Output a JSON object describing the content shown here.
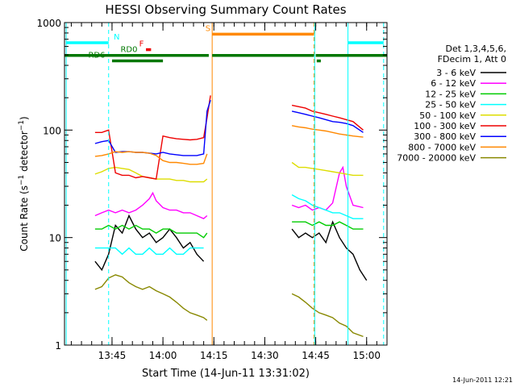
{
  "chart_data": {
    "type": "line",
    "title": "HESSI Observing Summary Count Rates",
    "xlabel": "Start Time (14-Jun-11 13:31:02)",
    "ylabel": "Count Rate (s⁻¹ detector⁻¹)",
    "y_scale": "log",
    "ylim": [
      1,
      1000
    ],
    "xlim_minutes_after_13:31:02": [
      0,
      95
    ],
    "yticks": [
      "1",
      "10",
      "100",
      "1000"
    ],
    "xticks": [
      {
        "label": "13:45",
        "t": 14
      },
      {
        "label": "14:00",
        "t": 29
      },
      {
        "label": "14:15",
        "t": 44
      },
      {
        "label": "14:30",
        "t": 59
      },
      {
        "label": "14:45",
        "t": 74
      },
      {
        "label": "15:00",
        "t": 89
      }
    ],
    "date_stamp": "14-Jun-2011 12:21",
    "legend_header": [
      "Det 1,3,4,5,6,",
      "FDecim 1, Att 0"
    ],
    "series": [
      {
        "name": "3 - 6 keV",
        "color": "#000000",
        "seg1": [
          [
            9,
            6
          ],
          [
            11,
            5
          ],
          [
            13,
            7
          ],
          [
            15,
            13
          ],
          [
            17,
            11
          ],
          [
            19,
            16
          ],
          [
            21,
            12
          ],
          [
            23,
            10
          ],
          [
            25,
            11
          ],
          [
            27,
            9
          ],
          [
            29,
            10
          ],
          [
            31,
            12
          ],
          [
            33,
            10
          ],
          [
            35,
            8
          ],
          [
            37,
            9
          ],
          [
            39,
            7
          ],
          [
            41,
            6
          ]
        ],
        "seg2": [
          [
            67,
            12
          ],
          [
            69,
            10
          ],
          [
            71,
            11
          ],
          [
            73,
            10
          ],
          [
            75,
            11
          ],
          [
            77,
            9
          ],
          [
            79,
            14
          ],
          [
            81,
            10
          ],
          [
            83,
            8
          ],
          [
            85,
            7
          ],
          [
            87,
            5
          ],
          [
            89,
            4
          ]
        ]
      },
      {
        "name": "6 - 12 keV",
        "color": "#ff00ff",
        "seg1": [
          [
            9,
            16
          ],
          [
            11,
            17
          ],
          [
            13,
            18
          ],
          [
            15,
            17
          ],
          [
            17,
            18
          ],
          [
            19,
            17
          ],
          [
            21,
            18
          ],
          [
            23,
            20
          ],
          [
            25,
            23
          ],
          [
            26,
            26
          ],
          [
            27,
            22
          ],
          [
            29,
            19
          ],
          [
            31,
            18
          ],
          [
            33,
            18
          ],
          [
            35,
            17
          ],
          [
            37,
            17
          ],
          [
            39,
            16
          ],
          [
            41,
            15
          ],
          [
            42,
            16
          ]
        ],
        "seg2": [
          [
            67,
            20
          ],
          [
            69,
            19
          ],
          [
            71,
            20
          ],
          [
            73,
            18
          ],
          [
            75,
            19
          ],
          [
            77,
            18
          ],
          [
            79,
            21
          ],
          [
            81,
            40
          ],
          [
            82,
            45
          ],
          [
            83,
            30
          ],
          [
            85,
            20
          ],
          [
            88,
            19
          ]
        ]
      },
      {
        "name": "12 - 25 keV",
        "color": "#00cc00",
        "seg1": [
          [
            9,
            12
          ],
          [
            11,
            12
          ],
          [
            13,
            13
          ],
          [
            15,
            12
          ],
          [
            17,
            13
          ],
          [
            19,
            12
          ],
          [
            21,
            13
          ],
          [
            23,
            12
          ],
          [
            25,
            12
          ],
          [
            27,
            11
          ],
          [
            29,
            12
          ],
          [
            31,
            12
          ],
          [
            33,
            11
          ],
          [
            35,
            11
          ],
          [
            37,
            11
          ],
          [
            39,
            11
          ],
          [
            41,
            10
          ],
          [
            42,
            11
          ]
        ],
        "seg2": [
          [
            67,
            14
          ],
          [
            69,
            14
          ],
          [
            71,
            14
          ],
          [
            73,
            13
          ],
          [
            75,
            14
          ],
          [
            77,
            13
          ],
          [
            79,
            13
          ],
          [
            81,
            14
          ],
          [
            83,
            13
          ],
          [
            85,
            12
          ],
          [
            88,
            12
          ]
        ]
      },
      {
        "name": "25 - 50 keV",
        "color": "#00ffff",
        "seg1": [
          [
            9,
            8
          ],
          [
            11,
            8
          ],
          [
            13,
            8
          ],
          [
            15,
            8
          ],
          [
            17,
            7
          ],
          [
            19,
            8
          ],
          [
            21,
            7
          ],
          [
            23,
            7
          ],
          [
            25,
            8
          ],
          [
            27,
            7
          ],
          [
            29,
            7
          ],
          [
            31,
            8
          ],
          [
            33,
            7
          ],
          [
            35,
            7
          ],
          [
            37,
            8
          ],
          [
            39,
            8
          ],
          [
            41,
            8
          ]
        ],
        "seg2": [
          [
            67,
            25
          ],
          [
            69,
            23
          ],
          [
            71,
            22
          ],
          [
            73,
            20
          ],
          [
            75,
            19
          ],
          [
            77,
            18
          ],
          [
            79,
            17
          ],
          [
            81,
            17
          ],
          [
            83,
            16
          ],
          [
            85,
            15
          ],
          [
            88,
            15
          ]
        ]
      },
      {
        "name": "50 - 100 keV",
        "color": "#dddd00",
        "seg1": [
          [
            9,
            39
          ],
          [
            11,
            41
          ],
          [
            13,
            44
          ],
          [
            15,
            45
          ],
          [
            17,
            44
          ],
          [
            19,
            43
          ],
          [
            21,
            40
          ],
          [
            23,
            37
          ],
          [
            25,
            36
          ],
          [
            27,
            35
          ],
          [
            29,
            35
          ],
          [
            31,
            35
          ],
          [
            33,
            34
          ],
          [
            35,
            34
          ],
          [
            37,
            33
          ],
          [
            39,
            33
          ],
          [
            41,
            33
          ],
          [
            42,
            35
          ]
        ],
        "seg2": [
          [
            67,
            50
          ],
          [
            69,
            45
          ],
          [
            71,
            45
          ],
          [
            73,
            44
          ],
          [
            75,
            43
          ],
          [
            77,
            42
          ],
          [
            79,
            41
          ],
          [
            81,
            40
          ],
          [
            83,
            39
          ],
          [
            85,
            38
          ],
          [
            88,
            38
          ]
        ]
      },
      {
        "name": "100 - 300 keV",
        "color": "#ee0000",
        "seg1": [
          [
            9,
            95
          ],
          [
            11,
            95
          ],
          [
            13,
            100
          ],
          [
            15,
            40
          ],
          [
            17,
            38
          ],
          [
            19,
            38
          ],
          [
            21,
            36
          ],
          [
            23,
            37
          ],
          [
            25,
            36
          ],
          [
            27,
            35
          ],
          [
            29,
            88
          ],
          [
            31,
            85
          ],
          [
            33,
            83
          ],
          [
            35,
            82
          ],
          [
            37,
            81
          ],
          [
            39,
            82
          ],
          [
            41,
            85
          ],
          [
            42,
            130
          ],
          [
            43,
            210
          ]
        ],
        "seg2": [
          [
            67,
            170
          ],
          [
            69,
            165
          ],
          [
            71,
            160
          ],
          [
            73,
            150
          ],
          [
            75,
            145
          ],
          [
            77,
            140
          ],
          [
            79,
            135
          ],
          [
            81,
            130
          ],
          [
            83,
            125
          ],
          [
            85,
            120
          ],
          [
            88,
            100
          ]
        ]
      },
      {
        "name": "300 - 800 keV",
        "color": "#0000ff",
        "seg1": [
          [
            9,
            75
          ],
          [
            11,
            78
          ],
          [
            13,
            80
          ],
          [
            15,
            62
          ],
          [
            17,
            63
          ],
          [
            19,
            63
          ],
          [
            21,
            62
          ],
          [
            23,
            62
          ],
          [
            25,
            61
          ],
          [
            27,
            60
          ],
          [
            29,
            62
          ],
          [
            31,
            60
          ],
          [
            33,
            59
          ],
          [
            35,
            58
          ],
          [
            37,
            58
          ],
          [
            39,
            58
          ],
          [
            41,
            60
          ],
          [
            42,
            150
          ],
          [
            43,
            190
          ]
        ],
        "seg2": [
          [
            67,
            150
          ],
          [
            69,
            145
          ],
          [
            71,
            140
          ],
          [
            73,
            135
          ],
          [
            75,
            130
          ],
          [
            77,
            125
          ],
          [
            79,
            120
          ],
          [
            81,
            118
          ],
          [
            83,
            115
          ],
          [
            85,
            110
          ],
          [
            88,
            95
          ]
        ]
      },
      {
        "name": "800 - 7000 keV",
        "color": "#ff8800",
        "seg1": [
          [
            9,
            57
          ],
          [
            11,
            58
          ],
          [
            13,
            60
          ],
          [
            15,
            63
          ],
          [
            17,
            62
          ],
          [
            19,
            63
          ],
          [
            21,
            62
          ],
          [
            23,
            62
          ],
          [
            25,
            61
          ],
          [
            27,
            58
          ],
          [
            29,
            52
          ],
          [
            31,
            50
          ],
          [
            33,
            50
          ],
          [
            35,
            49
          ],
          [
            37,
            48
          ],
          [
            39,
            48
          ],
          [
            41,
            49
          ],
          [
            42,
            60
          ]
        ],
        "seg2": [
          [
            67,
            110
          ],
          [
            69,
            107
          ],
          [
            71,
            105
          ],
          [
            73,
            102
          ],
          [
            75,
            100
          ],
          [
            77,
            98
          ],
          [
            79,
            95
          ],
          [
            81,
            92
          ],
          [
            83,
            90
          ],
          [
            85,
            88
          ],
          [
            88,
            86
          ]
        ]
      },
      {
        "name": "7000 - 20000 keV",
        "color": "#888800",
        "seg1": [
          [
            9,
            3.3
          ],
          [
            11,
            3.5
          ],
          [
            13,
            4.2
          ],
          [
            15,
            4.5
          ],
          [
            17,
            4.3
          ],
          [
            19,
            3.8
          ],
          [
            21,
            3.5
          ],
          [
            23,
            3.3
          ],
          [
            25,
            3.5
          ],
          [
            27,
            3.2
          ],
          [
            29,
            3.0
          ],
          [
            31,
            2.8
          ],
          [
            33,
            2.5
          ],
          [
            35,
            2.2
          ],
          [
            37,
            2.0
          ],
          [
            39,
            1.9
          ],
          [
            41,
            1.8
          ],
          [
            42,
            1.7
          ]
        ],
        "seg2": [
          [
            67,
            3.0
          ],
          [
            69,
            2.8
          ],
          [
            71,
            2.5
          ],
          [
            73,
            2.2
          ],
          [
            75,
            2.0
          ],
          [
            77,
            1.9
          ],
          [
            79,
            1.8
          ],
          [
            81,
            1.6
          ],
          [
            83,
            1.5
          ],
          [
            85,
            1.3
          ],
          [
            88,
            1.2
          ]
        ]
      }
    ],
    "vertical_markers": [
      {
        "t": 0.5,
        "color": "#00ffff",
        "style": "solid"
      },
      {
        "t": 13,
        "color": "#00ffff",
        "style": "dashed"
      },
      {
        "t": 43.5,
        "color": "#ff8800",
        "style": "solid"
      },
      {
        "t": 73.5,
        "color": "#ff8800",
        "style": "dashed"
      },
      {
        "t": 73.7,
        "color": "#00ffff",
        "style": "solid"
      },
      {
        "t": 83.5,
        "color": "#00ffff",
        "style": "solid"
      },
      {
        "t": 94,
        "color": "#00ffff",
        "style": "dashed"
      }
    ],
    "flag_bars": [
      {
        "label": "N",
        "color": "#00ffff",
        "y": 650,
        "segments": [
          [
            0.5,
            13
          ],
          [
            83.5,
            94
          ]
        ],
        "label_t": 14.5
      },
      {
        "label": "S",
        "color": "#ff8800",
        "y": 780,
        "segments": [
          [
            43.5,
            73.5
          ]
        ],
        "label_t": 41.5
      },
      {
        "label": "F",
        "color": "#ee0000",
        "y": 560,
        "segments": [
          [
            24,
            25.5
          ]
        ],
        "label_t": 22
      },
      {
        "label": "RD0",
        "color": "#007700",
        "y": 495,
        "segments": [
          [
            0,
            42.5
          ],
          [
            43.5,
            73.5
          ],
          [
            74,
            95
          ]
        ],
        "label_t": 16.5
      },
      {
        "label": "RD6",
        "color": "#007700",
        "y": 440,
        "segments": [
          [
            14,
            29
          ]
        ],
        "label_t": 7
      },
      {
        "label": "",
        "color": "#007700",
        "y": 440,
        "segments": [
          [
            74.3,
            75.5
          ]
        ],
        "label_t": 74
      }
    ]
  }
}
